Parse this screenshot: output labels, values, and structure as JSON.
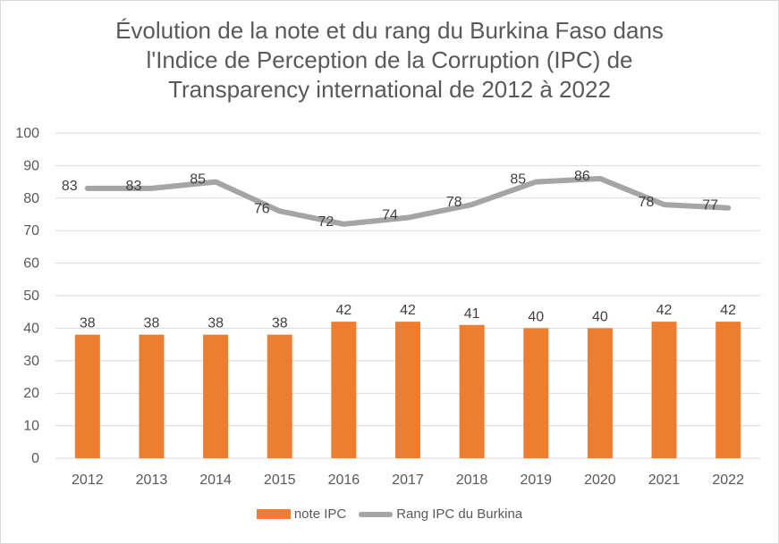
{
  "chart_data": {
    "type": "bar",
    "title_lines": [
      "Évolution de la note et du rang du Burkina Faso dans",
      "l'Indice de Perception de la Corruption (IPC) de",
      "Transparency  international de 2012 à 2022"
    ],
    "categories": [
      "2012",
      "2013",
      "2014",
      "2015",
      "2016",
      "2017",
      "2018",
      "2019",
      "2020",
      "2021",
      "2022"
    ],
    "series": [
      {
        "name": "note IPC",
        "type": "bar",
        "color": "#ED7D31",
        "values": [
          38,
          38,
          38,
          38,
          42,
          42,
          41,
          40,
          40,
          42,
          42
        ]
      },
      {
        "name": "Rang IPC du Burkina",
        "type": "line",
        "color": "#A5A5A5",
        "values": [
          83,
          83,
          85,
          76,
          72,
          74,
          78,
          85,
          86,
          78,
          77
        ]
      }
    ],
    "ylim": [
      0,
      100
    ],
    "yticks": [
      0,
      10,
      20,
      30,
      40,
      50,
      60,
      70,
      80,
      90,
      100
    ],
    "grid": true,
    "legend_position": "bottom",
    "xlabel": "",
    "ylabel": ""
  }
}
